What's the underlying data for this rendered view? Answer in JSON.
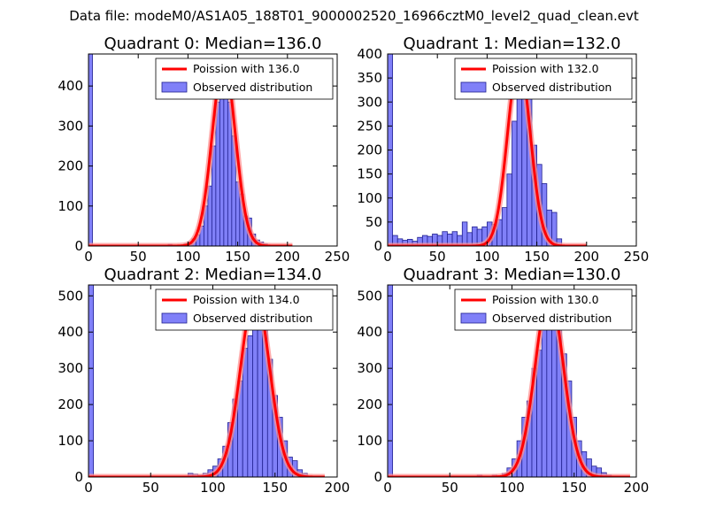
{
  "suptitle": "Data file: modeM0/AS1A05_188T01_9000002520_16966cztM0_level2_quad_clean.evt",
  "colors": {
    "bar_fill": "#8080f8",
    "bar_edge": "#202090",
    "line": "#ff0000",
    "line_halo": "#ff9090"
  },
  "chart_data": [
    {
      "type": "bar",
      "title": "Quadrant 0: Median=136.0",
      "xlim": [
        0,
        250
      ],
      "ylim": [
        0,
        480
      ],
      "xticks": [
        "0",
        "50",
        "100",
        "150",
        "200",
        "250"
      ],
      "yticks": [
        "0",
        "100",
        "200",
        "300",
        "400"
      ],
      "legend": {
        "line_label": "Poission with 136.0",
        "bar_label": "Observed distribution",
        "position": "upper-right"
      },
      "bin_width": 4,
      "bins": [
        {
          "x": 0,
          "y": 480
        },
        {
          "x": 80,
          "y": 4
        },
        {
          "x": 96,
          "y": 5
        },
        {
          "x": 100,
          "y": 10
        },
        {
          "x": 104,
          "y": 18
        },
        {
          "x": 108,
          "y": 28
        },
        {
          "x": 112,
          "y": 50
        },
        {
          "x": 116,
          "y": 100
        },
        {
          "x": 120,
          "y": 150
        },
        {
          "x": 124,
          "y": 250
        },
        {
          "x": 128,
          "y": 360
        },
        {
          "x": 132,
          "y": 455
        },
        {
          "x": 136,
          "y": 440
        },
        {
          "x": 140,
          "y": 360
        },
        {
          "x": 144,
          "y": 275
        },
        {
          "x": 148,
          "y": 160
        },
        {
          "x": 152,
          "y": 130
        },
        {
          "x": 156,
          "y": 75
        },
        {
          "x": 160,
          "y": 70
        },
        {
          "x": 164,
          "y": 30
        },
        {
          "x": 168,
          "y": 15
        },
        {
          "x": 172,
          "y": 10
        },
        {
          "x": 176,
          "y": 5
        }
      ],
      "poisson_mean": 136.0,
      "poisson_peak": 460,
      "curve_x_range": [
        0,
        205
      ]
    },
    {
      "type": "bar",
      "title": "Quadrant 1: Median=132.0",
      "xlim": [
        0,
        250
      ],
      "ylim": [
        0,
        400
      ],
      "xticks": [
        "0",
        "50",
        "100",
        "150",
        "200",
        "250"
      ],
      "yticks": [
        "0",
        "50",
        "100",
        "150",
        "200",
        "250",
        "300",
        "350",
        "400"
      ],
      "legend": {
        "line_label": "Poission with 132.0",
        "bar_label": "Observed distribution",
        "position": "upper-right"
      },
      "bin_width": 5,
      "bins": [
        {
          "x": 0,
          "y": 400
        },
        {
          "x": 5,
          "y": 22
        },
        {
          "x": 10,
          "y": 15
        },
        {
          "x": 15,
          "y": 12
        },
        {
          "x": 20,
          "y": 14
        },
        {
          "x": 25,
          "y": 10
        },
        {
          "x": 30,
          "y": 18
        },
        {
          "x": 35,
          "y": 22
        },
        {
          "x": 40,
          "y": 20
        },
        {
          "x": 45,
          "y": 25
        },
        {
          "x": 50,
          "y": 22
        },
        {
          "x": 55,
          "y": 30
        },
        {
          "x": 60,
          "y": 25
        },
        {
          "x": 65,
          "y": 30
        },
        {
          "x": 70,
          "y": 22
        },
        {
          "x": 75,
          "y": 50
        },
        {
          "x": 80,
          "y": 28
        },
        {
          "x": 85,
          "y": 40
        },
        {
          "x": 90,
          "y": 35
        },
        {
          "x": 95,
          "y": 40
        },
        {
          "x": 100,
          "y": 50
        },
        {
          "x": 105,
          "y": 45
        },
        {
          "x": 110,
          "y": 55
        },
        {
          "x": 115,
          "y": 80
        },
        {
          "x": 120,
          "y": 150
        },
        {
          "x": 125,
          "y": 260
        },
        {
          "x": 130,
          "y": 375
        },
        {
          "x": 135,
          "y": 385
        },
        {
          "x": 140,
          "y": 335
        },
        {
          "x": 145,
          "y": 210
        },
        {
          "x": 150,
          "y": 170
        },
        {
          "x": 155,
          "y": 130
        },
        {
          "x": 160,
          "y": 75
        },
        {
          "x": 165,
          "y": 70
        },
        {
          "x": 170,
          "y": 15
        }
      ],
      "poisson_mean": 132.0,
      "poisson_peak": 385,
      "curve_x_range": [
        0,
        200
      ]
    },
    {
      "type": "bar",
      "title": "Quadrant 2: Median=134.0",
      "xlim": [
        0,
        200
      ],
      "ylim": [
        0,
        530
      ],
      "xticks": [
        "0",
        "50",
        "100",
        "150",
        "200"
      ],
      "yticks": [
        "0",
        "100",
        "200",
        "300",
        "400",
        "500"
      ],
      "legend": {
        "line_label": "Poission with 134.0",
        "bar_label": "Observed distribution",
        "position": "upper-right"
      },
      "bin_width": 4,
      "bins": [
        {
          "x": 0,
          "y": 530
        },
        {
          "x": 80,
          "y": 10
        },
        {
          "x": 84,
          "y": 8
        },
        {
          "x": 88,
          "y": 5
        },
        {
          "x": 92,
          "y": 10
        },
        {
          "x": 96,
          "y": 20
        },
        {
          "x": 100,
          "y": 30
        },
        {
          "x": 104,
          "y": 50
        },
        {
          "x": 108,
          "y": 85
        },
        {
          "x": 112,
          "y": 150
        },
        {
          "x": 116,
          "y": 215
        },
        {
          "x": 120,
          "y": 265
        },
        {
          "x": 124,
          "y": 355
        },
        {
          "x": 128,
          "y": 390
        },
        {
          "x": 132,
          "y": 500
        },
        {
          "x": 136,
          "y": 480
        },
        {
          "x": 140,
          "y": 420
        },
        {
          "x": 144,
          "y": 325
        },
        {
          "x": 148,
          "y": 225
        },
        {
          "x": 152,
          "y": 165
        },
        {
          "x": 156,
          "y": 100
        },
        {
          "x": 160,
          "y": 55
        },
        {
          "x": 164,
          "y": 45
        },
        {
          "x": 168,
          "y": 20
        },
        {
          "x": 172,
          "y": 10
        }
      ],
      "poisson_mean": 134.0,
      "poisson_peak": 505,
      "curve_x_range": [
        0,
        190
      ]
    },
    {
      "type": "bar",
      "title": "Quadrant 3: Median=130.0",
      "xlim": [
        0,
        200
      ],
      "ylim": [
        0,
        530
      ],
      "xticks": [
        "0",
        "50",
        "100",
        "150",
        "200"
      ],
      "yticks": [
        "0",
        "100",
        "200",
        "300",
        "400",
        "500"
      ],
      "legend": {
        "line_label": "Poission with 130.0",
        "bar_label": "Observed distribution",
        "position": "upper-right"
      },
      "bin_width": 4,
      "bins": [
        {
          "x": 0,
          "y": 530
        },
        {
          "x": 72,
          "y": 5
        },
        {
          "x": 84,
          "y": 5
        },
        {
          "x": 92,
          "y": 10
        },
        {
          "x": 96,
          "y": 25
        },
        {
          "x": 100,
          "y": 50
        },
        {
          "x": 104,
          "y": 100
        },
        {
          "x": 108,
          "y": 165
        },
        {
          "x": 112,
          "y": 210
        },
        {
          "x": 116,
          "y": 300
        },
        {
          "x": 120,
          "y": 350
        },
        {
          "x": 124,
          "y": 445
        },
        {
          "x": 128,
          "y": 500
        },
        {
          "x": 132,
          "y": 485
        },
        {
          "x": 136,
          "y": 455
        },
        {
          "x": 140,
          "y": 340
        },
        {
          "x": 144,
          "y": 265
        },
        {
          "x": 148,
          "y": 165
        },
        {
          "x": 152,
          "y": 100
        },
        {
          "x": 156,
          "y": 70
        },
        {
          "x": 160,
          "y": 50
        },
        {
          "x": 164,
          "y": 30
        },
        {
          "x": 168,
          "y": 25
        },
        {
          "x": 172,
          "y": 12
        },
        {
          "x": 176,
          "y": 5
        }
      ],
      "poisson_mean": 130.0,
      "poisson_peak": 505,
      "curve_x_range": [
        0,
        195
      ]
    }
  ]
}
